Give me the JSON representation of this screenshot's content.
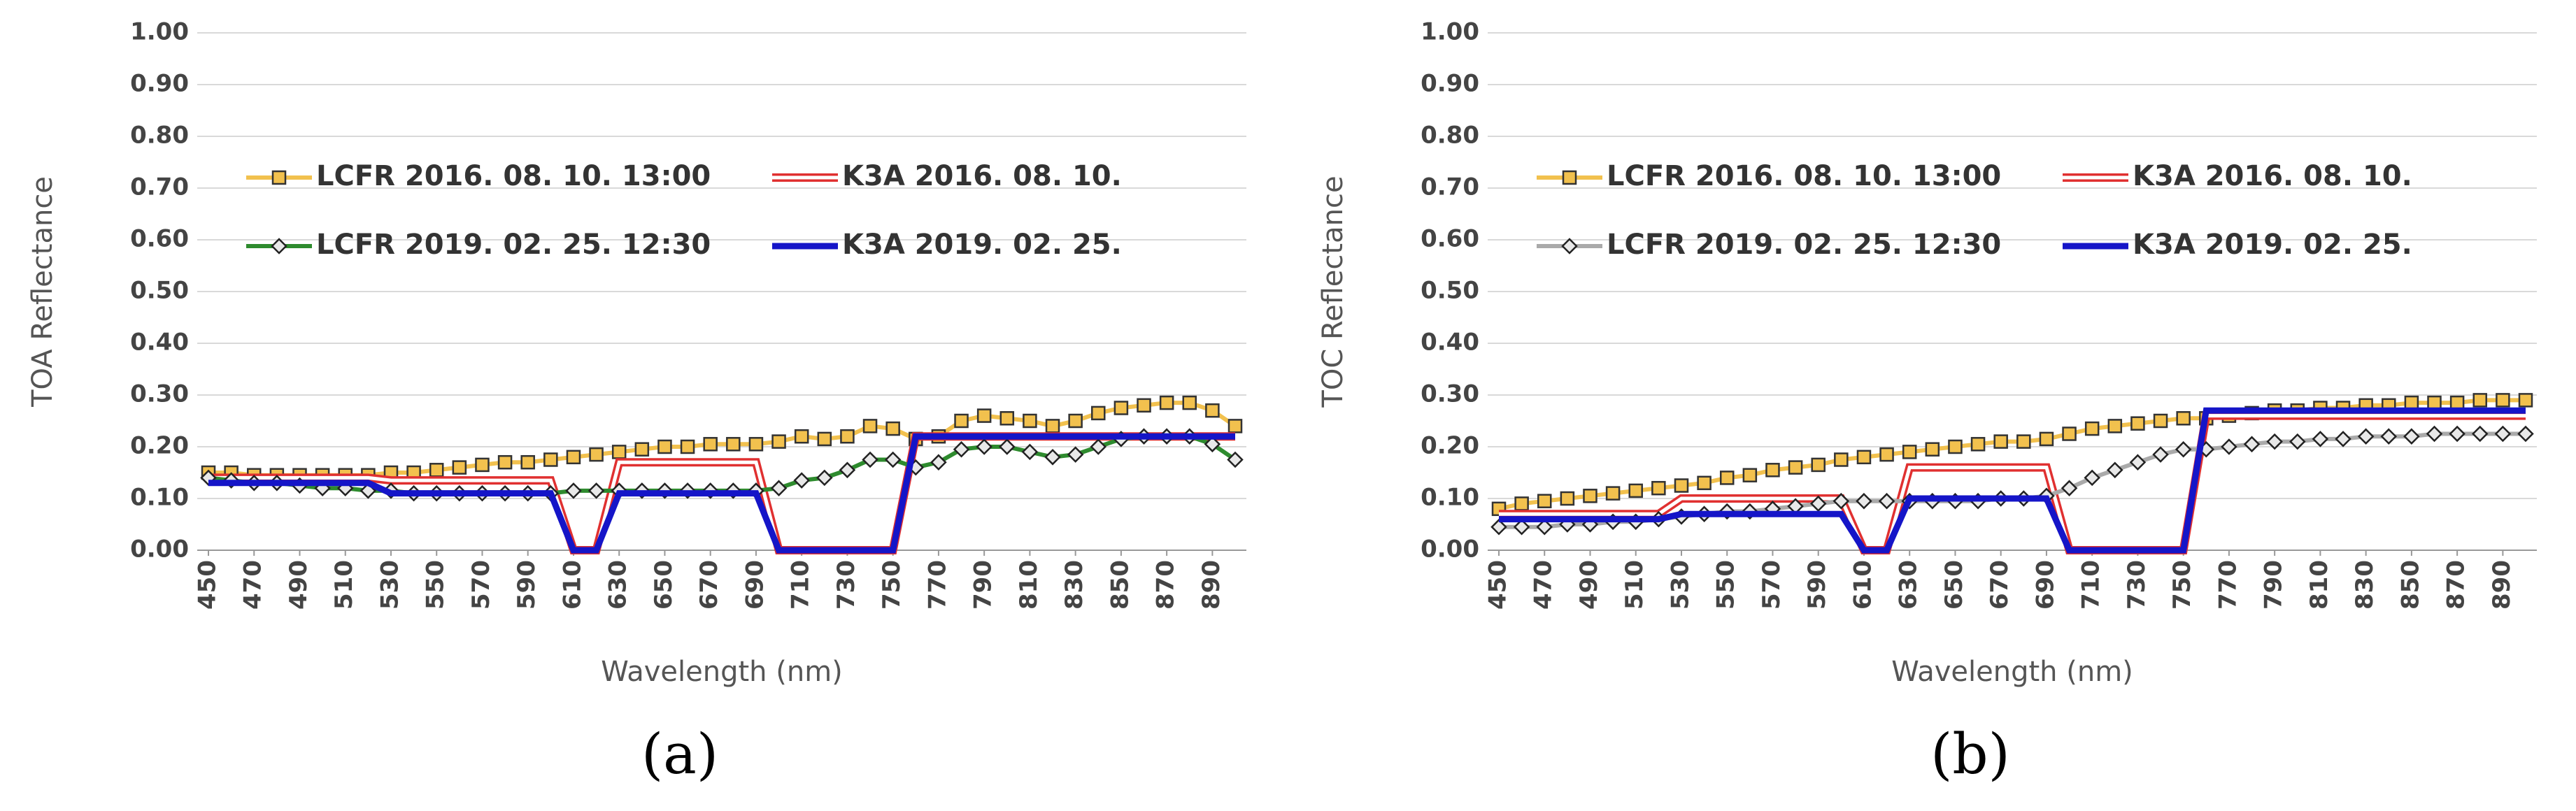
{
  "chart_data": [
    {
      "type": "line",
      "ylabel": "TOA Reflectance",
      "xlabel": "Wavelength (nm)",
      "panel": "(a)",
      "x": [
        450,
        460,
        470,
        480,
        490,
        500,
        510,
        520,
        530,
        540,
        550,
        560,
        570,
        580,
        590,
        600,
        610,
        620,
        630,
        640,
        650,
        660,
        670,
        680,
        690,
        700,
        710,
        720,
        730,
        740,
        750,
        760,
        770,
        780,
        790,
        800,
        810,
        820,
        830,
        840,
        850,
        860,
        870,
        880,
        890,
        900
      ],
      "xlim": [
        450,
        900
      ],
      "ylim": [
        0,
        1
      ],
      "xticks": [
        450,
        470,
        490,
        510,
        530,
        550,
        570,
        590,
        610,
        630,
        650,
        670,
        690,
        710,
        730,
        750,
        770,
        790,
        810,
        830,
        850,
        870,
        890
      ],
      "yticks": [
        {
          "value": 0,
          "label": "0.00"
        },
        {
          "value": 0.1,
          "label": "0.10"
        },
        {
          "value": 0.2,
          "label": "0.20"
        },
        {
          "value": 0.3,
          "label": "0.30"
        },
        {
          "value": 0.4,
          "label": "0.40"
        },
        {
          "value": 0.5,
          "label": "0.50"
        },
        {
          "value": 0.6,
          "label": "0.60"
        },
        {
          "value": 0.7,
          "label": "0.70"
        },
        {
          "value": 0.8,
          "label": "0.80"
        },
        {
          "value": 0.9,
          "label": "0.90"
        },
        {
          "value": 1,
          "label": "1.00"
        }
      ],
      "grid": true,
      "series": [
        {
          "name": "LCFR 2016. 08. 10. 13:00",
          "color": "#f2c14e",
          "marker": "square",
          "style": "plain",
          "values": [
            0.15,
            0.15,
            0.145,
            0.145,
            0.145,
            0.145,
            0.145,
            0.145,
            0.15,
            0.15,
            0.155,
            0.16,
            0.165,
            0.17,
            0.17,
            0.175,
            0.18,
            0.185,
            0.19,
            0.195,
            0.2,
            0.2,
            0.205,
            0.205,
            0.205,
            0.21,
            0.22,
            0.215,
            0.22,
            0.24,
            0.235,
            0.215,
            0.22,
            0.25,
            0.26,
            0.255,
            0.25,
            0.24,
            0.25,
            0.265,
            0.275,
            0.28,
            0.285,
            0.285,
            0.27,
            0.24
          ]
        },
        {
          "name": "K3A 2016. 08. 10.",
          "color": "#e03030",
          "marker": "none",
          "style": "double",
          "values": [
            0.14,
            0.14,
            0.14,
            0.14,
            0.14,
            0.14,
            0.14,
            0.14,
            0.135,
            0.135,
            0.135,
            0.135,
            0.135,
            0.135,
            0.135,
            0.135,
            0,
            0,
            0.17,
            0.17,
            0.17,
            0.17,
            0.17,
            0.17,
            0.17,
            0,
            0,
            0,
            0,
            0,
            0,
            0.22,
            0.22,
            0.22,
            0.22,
            0.22,
            0.22,
            0.22,
            0.22,
            0.22,
            0.22,
            0.22,
            0.22,
            0.22,
            0.22,
            0.22
          ]
        },
        {
          "name": "LCFR 2019. 02. 25. 12:30",
          "color": "#2e8b2e",
          "marker": "diamond",
          "style": "plain",
          "values": [
            0.14,
            0.135,
            0.13,
            0.13,
            0.125,
            0.12,
            0.12,
            0.115,
            0.115,
            0.11,
            0.11,
            0.11,
            0.11,
            0.11,
            0.11,
            0.11,
            0.115,
            0.115,
            0.115,
            0.115,
            0.115,
            0.115,
            0.115,
            0.115,
            0.115,
            0.12,
            0.135,
            0.14,
            0.155,
            0.175,
            0.175,
            0.16,
            0.17,
            0.195,
            0.2,
            0.2,
            0.19,
            0.18,
            0.185,
            0.2,
            0.215,
            0.22,
            0.22,
            0.22,
            0.205,
            0.175
          ]
        },
        {
          "name": "K3A 2019. 02. 25.",
          "color": "#1515c8",
          "marker": "none",
          "style": "thick",
          "values": [
            0.13,
            0.13,
            0.13,
            0.13,
            0.13,
            0.13,
            0.13,
            0.13,
            0.11,
            0.11,
            0.11,
            0.11,
            0.11,
            0.11,
            0.11,
            0.11,
            0,
            0,
            0.11,
            0.11,
            0.11,
            0.11,
            0.11,
            0.11,
            0.11,
            0,
            0,
            0,
            0,
            0,
            0,
            0.22,
            0.22,
            0.22,
            0.22,
            0.22,
            0.22,
            0.22,
            0.22,
            0.22,
            0.22,
            0.22,
            0.22,
            0.22,
            0.22,
            0.22
          ]
        }
      ]
    },
    {
      "type": "line",
      "ylabel": "TOC Reflectance",
      "xlabel": "Wavelength (nm)",
      "panel": "(b)",
      "x": [
        450,
        460,
        470,
        480,
        490,
        500,
        510,
        520,
        530,
        540,
        550,
        560,
        570,
        580,
        590,
        600,
        610,
        620,
        630,
        640,
        650,
        660,
        670,
        680,
        690,
        700,
        710,
        720,
        730,
        740,
        750,
        760,
        770,
        780,
        790,
        800,
        810,
        820,
        830,
        840,
        850,
        860,
        870,
        880,
        890,
        900
      ],
      "xlim": [
        450,
        900
      ],
      "ylim": [
        0,
        1
      ],
      "xticks": [
        450,
        470,
        490,
        510,
        530,
        550,
        570,
        590,
        610,
        630,
        650,
        670,
        690,
        710,
        730,
        750,
        770,
        790,
        810,
        830,
        850,
        870,
        890
      ],
      "yticks": [
        {
          "value": 0,
          "label": "0.00"
        },
        {
          "value": 0.1,
          "label": "0.10"
        },
        {
          "value": 0.2,
          "label": "0.20"
        },
        {
          "value": 0.3,
          "label": "0.30"
        },
        {
          "value": 0.4,
          "label": "0.40"
        },
        {
          "value": 0.5,
          "label": "0.50"
        },
        {
          "value": 0.6,
          "label": "0.60"
        },
        {
          "value": 0.7,
          "label": "0.70"
        },
        {
          "value": 0.8,
          "label": "0.80"
        },
        {
          "value": 0.9,
          "label": "0.90"
        },
        {
          "value": 1,
          "label": "1.00"
        }
      ],
      "grid": true,
      "series": [
        {
          "name": "LCFR 2016. 08. 10. 13:00",
          "color": "#f2c14e",
          "marker": "square",
          "style": "plain",
          "values": [
            0.08,
            0.09,
            0.095,
            0.1,
            0.105,
            0.11,
            0.115,
            0.12,
            0.125,
            0.13,
            0.14,
            0.145,
            0.155,
            0.16,
            0.165,
            0.175,
            0.18,
            0.185,
            0.19,
            0.195,
            0.2,
            0.205,
            0.21,
            0.21,
            0.215,
            0.225,
            0.235,
            0.24,
            0.245,
            0.25,
            0.255,
            0.255,
            0.26,
            0.265,
            0.27,
            0.27,
            0.275,
            0.275,
            0.28,
            0.28,
            0.285,
            0.285,
            0.285,
            0.29,
            0.29,
            0.29
          ]
        },
        {
          "name": "K3A 2016. 08. 10.",
          "color": "#e03030",
          "marker": "none",
          "style": "double",
          "values": [
            0.07,
            0.07,
            0.07,
            0.07,
            0.07,
            0.07,
            0.07,
            0.07,
            0.1,
            0.1,
            0.1,
            0.1,
            0.1,
            0.1,
            0.1,
            0.1,
            0,
            0,
            0.16,
            0.16,
            0.16,
            0.16,
            0.16,
            0.16,
            0.16,
            0,
            0,
            0,
            0,
            0,
            0,
            0.26,
            0.26,
            0.26,
            0.26,
            0.26,
            0.26,
            0.26,
            0.26,
            0.26,
            0.26,
            0.26,
            0.26,
            0.26,
            0.26,
            0.26
          ]
        },
        {
          "name": "LCFR 2019. 02. 25. 12:30",
          "color": "#aaaaaa",
          "marker": "diamond",
          "style": "plain",
          "values": [
            0.045,
            0.045,
            0.045,
            0.05,
            0.05,
            0.055,
            0.055,
            0.06,
            0.065,
            0.07,
            0.075,
            0.075,
            0.08,
            0.085,
            0.09,
            0.095,
            0.095,
            0.095,
            0.095,
            0.095,
            0.095,
            0.095,
            0.1,
            0.1,
            0.105,
            0.12,
            0.14,
            0.155,
            0.17,
            0.185,
            0.195,
            0.195,
            0.2,
            0.205,
            0.21,
            0.21,
            0.215,
            0.215,
            0.22,
            0.22,
            0.22,
            0.225,
            0.225,
            0.225,
            0.225,
            0.225
          ]
        },
        {
          "name": "K3A 2019. 02. 25.",
          "color": "#1515c8",
          "marker": "none",
          "style": "thick",
          "values": [
            0.06,
            0.06,
            0.06,
            0.06,
            0.06,
            0.06,
            0.06,
            0.06,
            0.07,
            0.07,
            0.07,
            0.07,
            0.07,
            0.07,
            0.07,
            0.07,
            0,
            0,
            0.1,
            0.1,
            0.1,
            0.1,
            0.1,
            0.1,
            0.1,
            0,
            0,
            0,
            0,
            0,
            0,
            0.27,
            0.27,
            0.27,
            0.27,
            0.27,
            0.27,
            0.27,
            0.27,
            0.27,
            0.27,
            0.27,
            0.27,
            0.27,
            0.27,
            0.27
          ]
        }
      ]
    }
  ]
}
